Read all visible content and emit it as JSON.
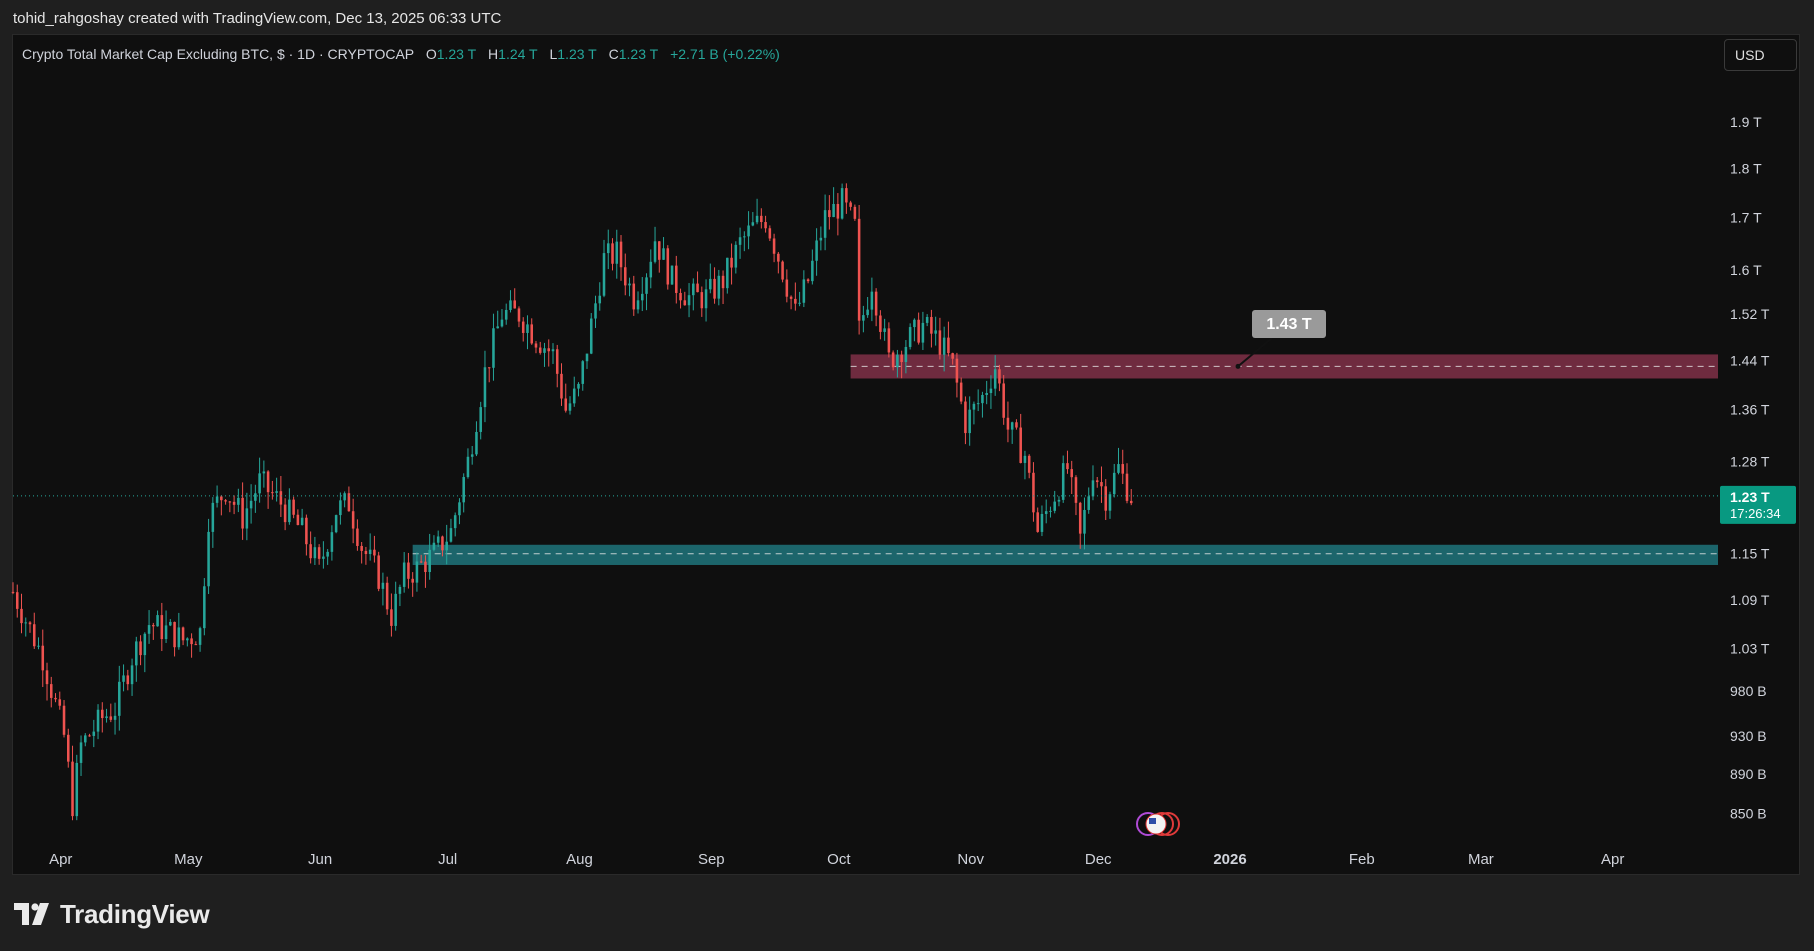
{
  "header": {
    "attribution": "tohid_rahgoshay created with TradingView.com, Dec 13, 2025 06:33 UTC"
  },
  "legend": {
    "symbol": "Crypto Total Market Cap Excluding BTC, $ · 1D · CRYPTOCAP",
    "open_label": "O",
    "open": "1.23 T",
    "high_label": "H",
    "high": "1.24 T",
    "low_label": "L",
    "low": "1.23 T",
    "close_label": "C",
    "close": "1.23 T",
    "change": "+2.71 B (+0.22%)"
  },
  "currency_button": {
    "label": "USD"
  },
  "brand": {
    "name": "TradingView"
  },
  "colors": {
    "up": "#26a69a",
    "down": "#ef5350",
    "resistance_zone": "#7a2f45",
    "support_zone": "#1e6f76",
    "price_badge": "#089981"
  },
  "icons": {
    "brand_logo": "tradingview-logo-icon",
    "event_flag": "us-flag-icon"
  },
  "chart_data": {
    "type": "candlestick",
    "title": "Crypto Total Market Cap Excluding BTC",
    "interval": "1D",
    "y_scale": "log",
    "ylim": [
      830000000000,
      2000000000000
    ],
    "y_tick_labels": [
      "1.9 T",
      "1.8 T",
      "1.7 T",
      "1.6 T",
      "1.52 T",
      "1.44 T",
      "1.36 T",
      "1.28 T",
      "1.15 T",
      "1.09 T",
      "1.03 T",
      "980 B",
      "930 B",
      "890 B",
      "850 B"
    ],
    "y_tick_values": [
      1.9,
      1.8,
      1.7,
      1.6,
      1.52,
      1.44,
      1.36,
      1.28,
      1.15,
      1.09,
      1.03,
      0.98,
      0.93,
      0.89,
      0.85
    ],
    "x_tick_labels": [
      "Apr",
      "May",
      "Jun",
      "Jul",
      "Aug",
      "Sep",
      "Oct",
      "Nov",
      "Dec",
      "2026",
      "Feb",
      "Mar",
      "Apr"
    ],
    "x_tick_dates": [
      "2025-04-01",
      "2025-05-01",
      "2025-06-01",
      "2025-07-01",
      "2025-08-01",
      "2025-09-01",
      "2025-10-01",
      "2025-11-01",
      "2025-12-01",
      "2026-01-01",
      "2026-02-01",
      "2026-03-01",
      "2026-04-01"
    ],
    "x_range": [
      "2025-03-25",
      "2026-04-30"
    ],
    "last_price_label": "1.23 T",
    "countdown": "17:26:34",
    "last_price": 1.23,
    "series": [
      {
        "name": "",
        "points": [
          [
            "2025-03-25",
            1.1
          ],
          [
            "2025-04-01",
            1.02
          ],
          [
            "2025-04-06",
            0.93
          ],
          [
            "2025-04-08",
            0.86
          ],
          [
            "2025-04-10",
            0.92
          ],
          [
            "2025-04-15",
            0.95
          ],
          [
            "2025-04-18",
            0.96
          ],
          [
            "2025-04-22",
            1.02
          ],
          [
            "2025-04-26",
            1.06
          ],
          [
            "2025-05-01",
            1.05
          ],
          [
            "2025-05-04",
            1.04
          ],
          [
            "2025-05-08",
            1.05
          ],
          [
            "2025-05-10",
            1.2
          ],
          [
            "2025-05-14",
            1.24
          ],
          [
            "2025-05-18",
            1.2
          ],
          [
            "2025-05-22",
            1.25
          ],
          [
            "2025-05-27",
            1.22
          ],
          [
            "2025-06-01",
            1.18
          ],
          [
            "2025-06-05",
            1.13
          ],
          [
            "2025-06-09",
            1.21
          ],
          [
            "2025-06-12",
            1.22
          ],
          [
            "2025-06-15",
            1.16
          ],
          [
            "2025-06-19",
            1.12
          ],
          [
            "2025-06-22",
            1.07
          ],
          [
            "2025-06-25",
            1.12
          ],
          [
            "2025-06-28",
            1.13
          ],
          [
            "2025-07-02",
            1.15
          ],
          [
            "2025-07-06",
            1.18
          ],
          [
            "2025-07-10",
            1.28
          ],
          [
            "2025-07-14",
            1.42
          ],
          [
            "2025-07-18",
            1.52
          ],
          [
            "2025-07-22",
            1.52
          ],
          [
            "2025-07-26",
            1.48
          ],
          [
            "2025-07-30",
            1.45
          ],
          [
            "2025-08-02",
            1.36
          ],
          [
            "2025-08-05",
            1.39
          ],
          [
            "2025-08-08",
            1.5
          ],
          [
            "2025-08-11",
            1.62
          ],
          [
            "2025-08-14",
            1.63
          ],
          [
            "2025-08-18",
            1.55
          ],
          [
            "2025-08-21",
            1.6
          ],
          [
            "2025-08-23",
            1.66
          ],
          [
            "2025-08-27",
            1.58
          ],
          [
            "2025-08-31",
            1.55
          ],
          [
            "2025-09-04",
            1.55
          ],
          [
            "2025-09-08",
            1.58
          ],
          [
            "2025-09-12",
            1.65
          ],
          [
            "2025-09-15",
            1.68
          ],
          [
            "2025-09-18",
            1.7
          ],
          [
            "2025-09-22",
            1.6
          ],
          [
            "2025-09-25",
            1.52
          ],
          [
            "2025-09-28",
            1.58
          ],
          [
            "2025-10-02",
            1.7
          ],
          [
            "2025-10-06",
            1.73
          ],
          [
            "2025-10-09",
            1.68
          ],
          [
            "2025-10-10",
            1.49
          ],
          [
            "2025-10-13",
            1.58
          ],
          [
            "2025-10-17",
            1.44
          ],
          [
            "2025-10-21",
            1.47
          ],
          [
            "2025-10-25",
            1.5
          ],
          [
            "2025-10-29",
            1.47
          ],
          [
            "2025-11-01",
            1.43
          ],
          [
            "2025-11-04",
            1.34
          ],
          [
            "2025-11-08",
            1.38
          ],
          [
            "2025-11-11",
            1.43
          ],
          [
            "2025-11-14",
            1.33
          ],
          [
            "2025-11-18",
            1.29
          ],
          [
            "2025-11-21",
            1.18
          ],
          [
            "2025-11-24",
            1.22
          ],
          [
            "2025-11-28",
            1.27
          ],
          [
            "2025-12-01",
            1.17
          ],
          [
            "2025-12-04",
            1.27
          ],
          [
            "2025-12-07",
            1.23
          ],
          [
            "2025-12-10",
            1.27
          ],
          [
            "2025-12-13",
            1.23
          ]
        ]
      }
    ],
    "zones": [
      {
        "from": "2025-10-08",
        "to": "2026-04-30",
        "low": 1.41,
        "high": 1.45,
        "level": 1.43,
        "label": "1.43 T"
      },
      {
        "from": "2025-06-27",
        "to": "2026-04-30",
        "low": 1.135,
        "high": 1.162,
        "level": 1.15,
        "label": ""
      }
    ]
  }
}
